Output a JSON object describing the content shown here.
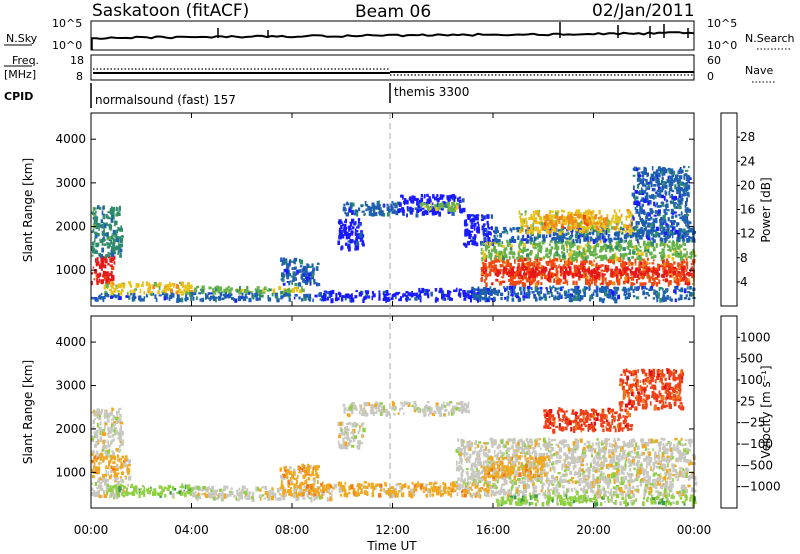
{
  "chart_data": {
    "type": "heatmap",
    "header": {
      "station": "Saskatoon (fitACF)",
      "beam": "Beam 06",
      "date": "02/Jan/2011"
    },
    "strip1": {
      "left_label": "N.Sky",
      "left_ticks": [
        "10^5",
        "10^0"
      ],
      "right_ticks": [
        "10^5",
        "10^0"
      ],
      "right_label": "N.Search"
    },
    "strip2": {
      "left_label_1": "Freq.",
      "left_label_2": "[MHz]",
      "left_ticks": [
        18,
        8
      ],
      "right_ticks": [
        60,
        0
      ],
      "right_label": "Nave"
    },
    "cpid": {
      "label": "CPID",
      "programs": [
        {
          "name": "normalsound (fast) 157",
          "start_hour": 0
        },
        {
          "name": "themis 3300",
          "start_hour": 12
        }
      ]
    },
    "time_axis": {
      "xlabel": "Time UT",
      "tick_labels": [
        "00:00",
        "04:00",
        "08:00",
        "12:00",
        "16:00",
        "20:00",
        "00:00"
      ],
      "xlim_hours": [
        0,
        24
      ]
    },
    "panels": [
      {
        "name": "power",
        "ylabel": "Slant Range [km]",
        "ylim": [
          180,
          4600
        ],
        "y_ticks": [
          1000,
          2000,
          3000,
          4000
        ],
        "colorbar": {
          "label": "Power [dB]",
          "tick_labels": [
            "4",
            "8",
            "12",
            "16",
            "20",
            "24",
            "28"
          ],
          "colors": [
            "#1a1aff",
            "#1f5fb0",
            "#2e8b6b",
            "#66b24a",
            "#e8c21c",
            "#f08a18",
            "#f04a12",
            "#e81818"
          ]
        }
      },
      {
        "name": "velocity",
        "ylabel": "Slant Range [km]",
        "ylim": [
          180,
          4600
        ],
        "y_ticks": [
          1000,
          2000,
          3000,
          4000
        ],
        "colorbar": {
          "label": "Velocity [m s⁻¹]",
          "tick_labels": [
            "1000",
            "500",
            "100",
            "25",
            "−25",
            "−100",
            "−500",
            "−1000"
          ],
          "colors": [
            "#2233c4",
            "#2f6fd0",
            "#3a9a4a",
            "#8fd040",
            "#c8c8c0",
            "#f0a820",
            "#f07818",
            "#f04018",
            "#e01010"
          ]
        }
      }
    ],
    "power_regions": [
      {
        "t0": 0,
        "t1": 0.9,
        "r0": 700,
        "r1": 1350,
        "level": 7
      },
      {
        "t0": 0,
        "t1": 1.2,
        "r0": 1350,
        "r1": 2500,
        "level": 2
      },
      {
        "t0": 0.5,
        "t1": 4,
        "r0": 500,
        "r1": 750,
        "level": 4
      },
      {
        "t0": 4,
        "t1": 8.5,
        "r0": 500,
        "r1": 650,
        "level": 3
      },
      {
        "t0": 0,
        "t1": 9.5,
        "r0": 350,
        "r1": 500,
        "level": 1
      },
      {
        "t0": 9,
        "t1": 13,
        "r0": 350,
        "r1": 550,
        "level": 0
      },
      {
        "t0": 13,
        "t1": 16,
        "r0": 350,
        "r1": 600,
        "level": 0
      },
      {
        "t0": 7.5,
        "t1": 9,
        "r0": 700,
        "r1": 1300,
        "level": 1
      },
      {
        "t0": 9.8,
        "t1": 10.8,
        "r0": 1500,
        "r1": 2200,
        "level": 0
      },
      {
        "t0": 10,
        "t1": 12.2,
        "r0": 2300,
        "r1": 2600,
        "level": 1
      },
      {
        "t0": 12.2,
        "t1": 14.8,
        "r0": 2300,
        "r1": 2750,
        "level": 0
      },
      {
        "t0": 13,
        "t1": 14.6,
        "r0": 2400,
        "r1": 2600,
        "level": 3
      },
      {
        "t0": 14.8,
        "t1": 16,
        "r0": 1600,
        "r1": 2300,
        "level": 0
      },
      {
        "t0": 15.5,
        "t1": 24,
        "r0": 700,
        "r1": 1300,
        "level": 6
      },
      {
        "t0": 16,
        "t1": 24,
        "r0": 900,
        "r1": 1100,
        "level": 7
      },
      {
        "t0": 15.5,
        "t1": 24,
        "r0": 1300,
        "r1": 1700,
        "level": 3
      },
      {
        "t0": 16,
        "t1": 24,
        "r0": 1700,
        "r1": 2000,
        "level": 1
      },
      {
        "t0": 17,
        "t1": 21.5,
        "r0": 1900,
        "r1": 2400,
        "level": 4
      },
      {
        "t0": 18,
        "t1": 20.5,
        "r0": 2000,
        "r1": 2300,
        "level": 5
      },
      {
        "t0": 21.5,
        "t1": 23.8,
        "r0": 1800,
        "r1": 3400,
        "level": 1
      },
      {
        "t0": 15,
        "t1": 24,
        "r0": 350,
        "r1": 650,
        "level": 1
      }
    ],
    "velocity_regions": [
      {
        "t0": 0,
        "t1": 1.2,
        "r0": 1400,
        "r1": 2500,
        "level": 4
      },
      {
        "t0": 0,
        "t1": 1.5,
        "r0": 900,
        "r1": 1400,
        "level": 5
      },
      {
        "t0": 0,
        "t1": 1.5,
        "r0": 450,
        "r1": 900,
        "level": 4
      },
      {
        "t0": 0.5,
        "t1": 4,
        "r0": 500,
        "r1": 750,
        "level": 3
      },
      {
        "t0": 4,
        "t1": 9.5,
        "r0": 400,
        "r1": 700,
        "level": 4
      },
      {
        "t0": 7.5,
        "t1": 9,
        "r0": 500,
        "r1": 1200,
        "level": 5
      },
      {
        "t0": 9.8,
        "t1": 10.8,
        "r0": 1600,
        "r1": 2200,
        "level": 4
      },
      {
        "t0": 10,
        "t1": 15,
        "r0": 2350,
        "r1": 2650,
        "level": 4
      },
      {
        "t0": 9,
        "t1": 16,
        "r0": 500,
        "r1": 800,
        "level": 5
      },
      {
        "t0": 14.5,
        "t1": 24,
        "r0": 500,
        "r1": 1800,
        "level": 4
      },
      {
        "t0": 15.5,
        "t1": 18,
        "r0": 900,
        "r1": 1400,
        "level": 5
      },
      {
        "t0": 18,
        "t1": 21.5,
        "r0": 2000,
        "r1": 2500,
        "level": 7
      },
      {
        "t0": 21,
        "t1": 23.5,
        "r0": 2500,
        "r1": 3400,
        "level": 7
      },
      {
        "t0": 16,
        "t1": 24,
        "r0": 300,
        "r1": 500,
        "level": 3
      }
    ]
  }
}
